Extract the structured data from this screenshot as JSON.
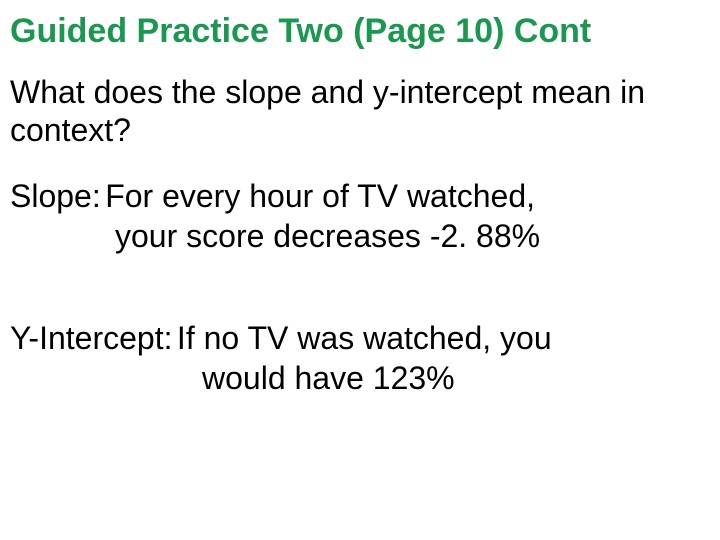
{
  "title": "Guided Practice Two (Page 10) Cont",
  "question": "What does the slope and y-intercept mean in context?",
  "slope": {
    "label": "Slope:",
    "line1": "For every hour of TV watched,",
    "line2": "your score decreases -2. 88%"
  },
  "yintercept": {
    "label": "Y-Intercept:",
    "line1": "If no TV was watched, you",
    "line2": "would have 123%"
  },
  "colors": {
    "title_color": "#1a9850",
    "text_color": "#000000",
    "background": "#ffffff"
  },
  "typography": {
    "title_fontsize": 34,
    "body_fontsize": 32,
    "font_family": "Arial"
  }
}
